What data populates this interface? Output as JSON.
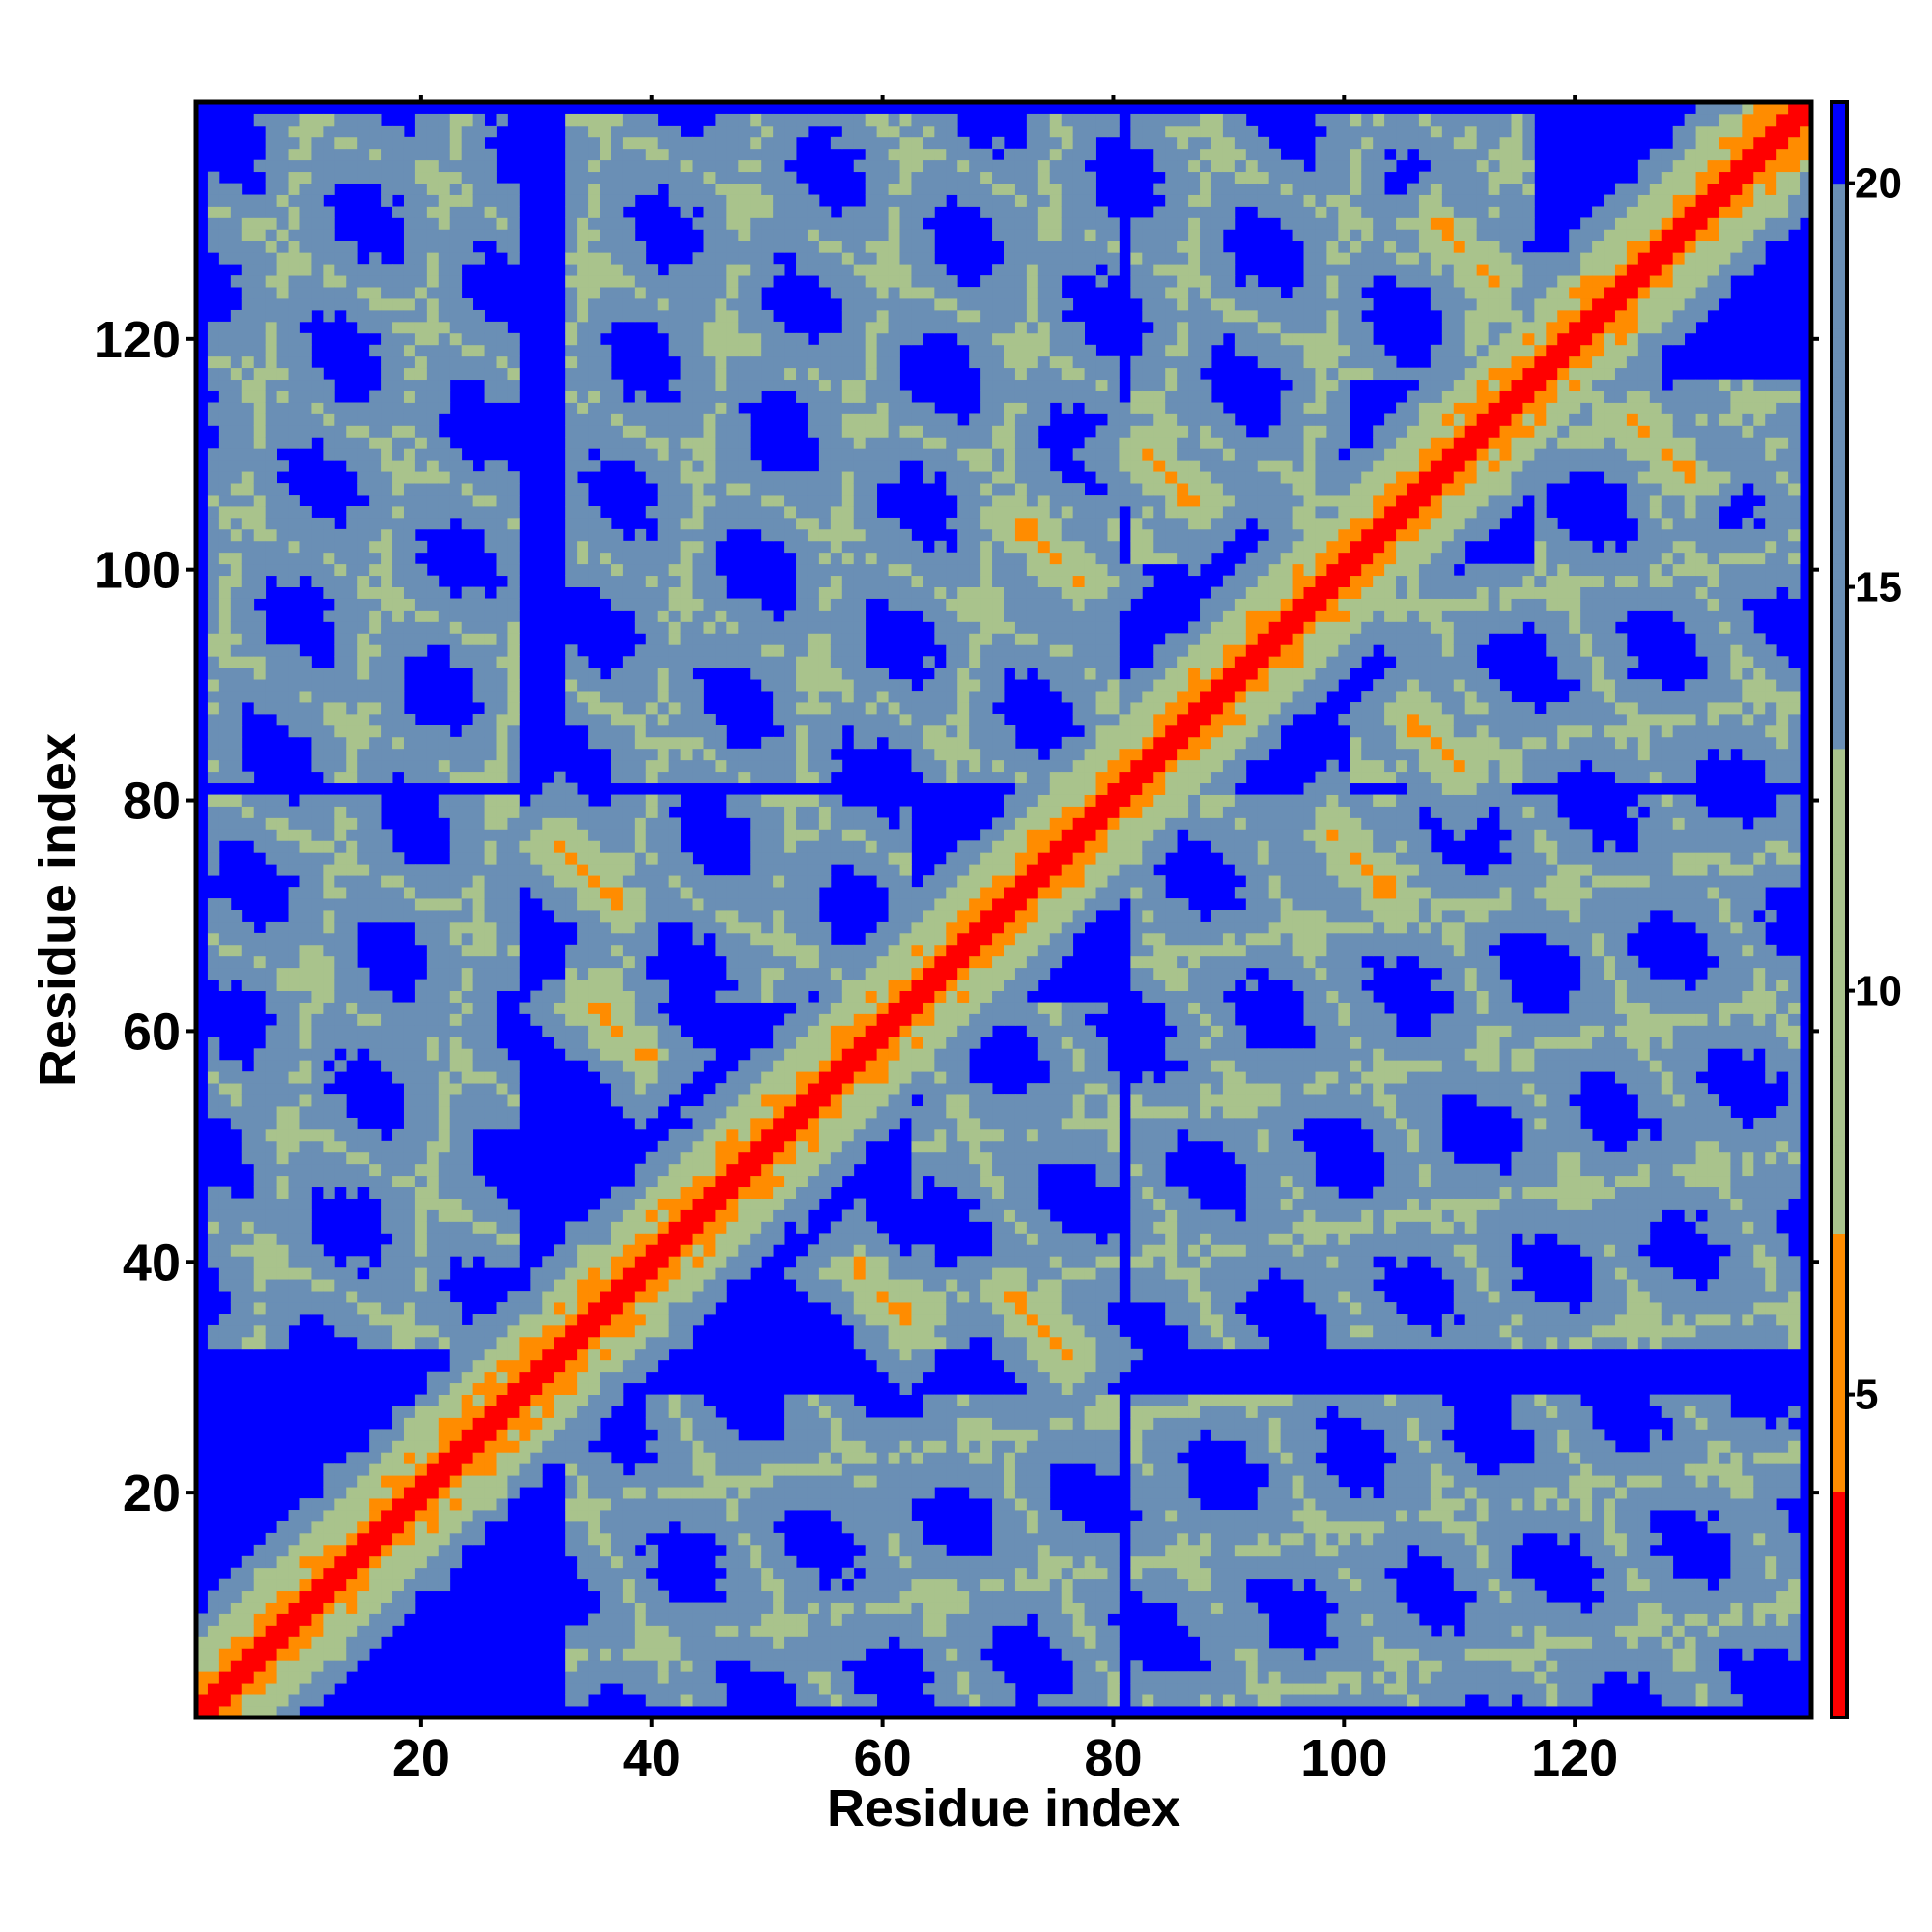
{
  "chart_data": {
    "type": "heatmap",
    "title": "",
    "xlabel": "Residue index",
    "ylabel": "Residue index",
    "n_residues": 140,
    "xlim": [
      1,
      140
    ],
    "ylim": [
      1,
      140
    ],
    "x_ticks": [
      20,
      40,
      60,
      80,
      100,
      120
    ],
    "y_ticks": [
      20,
      40,
      60,
      80,
      100,
      120
    ],
    "colorbar": {
      "ticks": [
        5,
        10,
        15,
        20
      ],
      "range": [
        1,
        21
      ],
      "cutoff": 21,
      "colors": {
        "near": "#ff0000",
        "close": "#ff8c00",
        "mid": "#a9c38c",
        "far": "#6a8fb5",
        "beyond": "#0000ff"
      }
    },
    "structure": {
      "helices": [
        [
          2,
          28
        ],
        [
          33,
          62
        ],
        [
          63,
          80
        ],
        [
          82,
          100
        ],
        [
          101,
          116
        ],
        [
          117,
          139
        ]
      ],
      "contacts": [
        {
          "i": 32,
          "j": 76,
          "len": 6,
          "dir": "anti"
        },
        {
          "i": 35,
          "j": 62,
          "len": 5,
          "dir": "anti"
        },
        {
          "i": 63,
          "j": 33,
          "len": 5,
          "dir": "anti"
        },
        {
          "i": 75,
          "j": 36,
          "len": 5,
          "dir": "anti"
        },
        {
          "i": 104,
          "j": 72,
          "len": 6,
          "dir": "anti"
        },
        {
          "i": 72,
          "j": 104,
          "len": 6,
          "dir": "anti"
        },
        {
          "i": 110,
          "j": 83,
          "len": 6,
          "dir": "anti"
        },
        {
          "i": 83,
          "j": 110,
          "len": 5,
          "dir": "anti"
        },
        {
          "i": 108,
          "j": 130,
          "len": 6,
          "dir": "anti"
        },
        {
          "i": 129,
          "j": 108,
          "len": 5,
          "dir": "anti"
        },
        {
          "i": 122,
          "j": 77,
          "len": 5,
          "dir": "anti"
        },
        {
          "i": 137,
          "j": 108,
          "len": 4,
          "dir": "anti"
        }
      ]
    }
  }
}
